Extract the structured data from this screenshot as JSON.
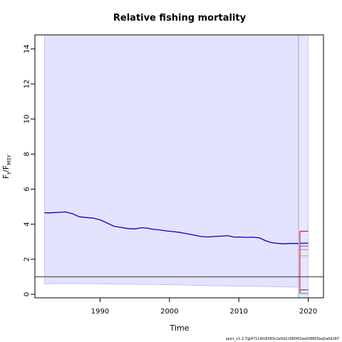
{
  "chart_data": {
    "type": "line",
    "title": "Relative fishing mortality",
    "xlabel": "Time",
    "ylabel_main": "F",
    "ylabel_sub1": "t",
    "ylabel_mid": "/F",
    "ylabel_sub2": "MSY",
    "xlim": [
      1980.6,
      2022.2
    ],
    "ylim": [
      -0.2,
      14.8
    ],
    "xticks": [
      1990,
      2000,
      2010,
      2020
    ],
    "yticks": [
      0,
      2,
      4,
      6,
      8,
      10,
      12,
      14
    ],
    "reference_line": 1,
    "estimate_end": 2018.6,
    "footer": "spict_v1.2.7@47114fc8383c2e5d1c080f02eef28803ea5a0d287",
    "ci_band": {
      "x": [
        1982,
        1985,
        1990,
        1995,
        2000,
        2005,
        2010,
        2015,
        2019
      ],
      "lower": [
        0.6,
        0.62,
        0.6,
        0.57,
        0.55,
        0.5,
        0.47,
        0.44,
        0.4
      ],
      "upper": [
        14.8,
        14.8,
        14.8,
        14.8,
        14.8,
        14.8,
        14.8,
        14.8,
        14.8
      ]
    },
    "series": [
      {
        "x": [
          1982,
          1983,
          1984,
          1985,
          1986,
          1987,
          1988,
          1989,
          1990,
          1991,
          1992,
          1993,
          1994,
          1995,
          1996,
          1996.8,
          1997.5,
          1998.5,
          1999.5,
          2000.5,
          2001.5,
          2002.5,
          2003.5,
          2004.5,
          2005.5,
          2006.5,
          2007.5,
          2008.5,
          2009.3,
          2010,
          2011,
          2012,
          2013,
          2013.8,
          2014.6,
          2015.5,
          2016.5,
          2017.5,
          2018.6
        ],
        "values": [
          4.65,
          4.65,
          4.68,
          4.7,
          4.6,
          4.42,
          4.38,
          4.35,
          4.25,
          4.07,
          3.88,
          3.82,
          3.75,
          3.73,
          3.8,
          3.78,
          3.72,
          3.68,
          3.62,
          3.58,
          3.53,
          3.46,
          3.38,
          3.3,
          3.27,
          3.3,
          3.32,
          3.34,
          3.26,
          3.27,
          3.25,
          3.26,
          3.22,
          3.07,
          2.96,
          2.91,
          2.88,
          2.9,
          2.9
        ],
        "color": "#0000cc"
      }
    ],
    "forecast": {
      "x0": 2018.6,
      "x1": 2020.0,
      "band_color": "#e6e6ff",
      "segments": [
        {
          "y": 2.9,
          "color": "#0000cc"
        },
        {
          "y": 3.6,
          "color": "#cc0044"
        },
        {
          "y": 2.75,
          "color": "#ff00ff"
        },
        {
          "y": 2.2,
          "color": "#d4b000"
        },
        {
          "y": 2.95,
          "color": "#33cccc"
        },
        {
          "y": 2.55,
          "color": "#999999"
        },
        {
          "y": 0.25,
          "color": "#880088"
        },
        {
          "y": 0.05,
          "color": "#00cc00"
        }
      ]
    }
  }
}
